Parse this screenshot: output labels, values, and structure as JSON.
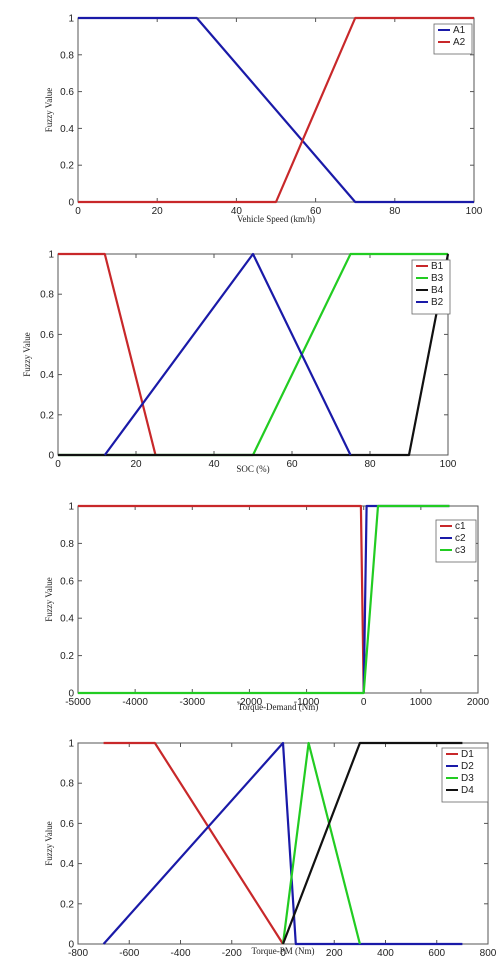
{
  "chart_data": [
    {
      "type": "line",
      "xlabel": "Vehicle Speed (km/h)",
      "ylabel": "Fuzzy Value",
      "xlim": [
        0,
        100
      ],
      "ylim": [
        0,
        1
      ],
      "xticks": [
        0,
        20,
        40,
        60,
        80,
        100
      ],
      "yticks": [
        0,
        0.2,
        0.4,
        0.6,
        0.8,
        1
      ],
      "legend": "top-right",
      "series": [
        {
          "name": "A1",
          "color": "#1a1aa8",
          "x": [
            0,
            30,
            70,
            100
          ],
          "y": [
            1,
            1,
            0,
            0
          ]
        },
        {
          "name": "A2",
          "color": "#c8282a",
          "x": [
            0,
            50,
            70,
            100
          ],
          "y": [
            0,
            0,
            1,
            1
          ]
        }
      ]
    },
    {
      "type": "line",
      "xlabel": "SOC (%)",
      "ylabel": "Fuzzy Value",
      "xlim": [
        0,
        100
      ],
      "ylim": [
        0,
        1
      ],
      "xticks": [
        0,
        20,
        40,
        60,
        80,
        100
      ],
      "yticks": [
        0,
        0.2,
        0.4,
        0.6,
        0.8,
        1
      ],
      "legend": "top-right",
      "series": [
        {
          "name": "B1",
          "color": "#c8282a",
          "x": [
            0,
            12,
            25
          ],
          "y": [
            1,
            1,
            0
          ]
        },
        {
          "name": "B3",
          "color": "#22cc22",
          "x": [
            0,
            50,
            75,
            100
          ],
          "y": [
            0,
            0,
            1,
            1
          ]
        },
        {
          "name": "B4",
          "color": "#111111",
          "x": [
            0,
            90,
            100
          ],
          "y": [
            0,
            0,
            1
          ]
        },
        {
          "name": "B2",
          "color": "#1a1aa8",
          "x": [
            12,
            50,
            75
          ],
          "y": [
            0,
            1,
            0
          ]
        }
      ]
    },
    {
      "type": "line",
      "xlabel": "Torque-Demand (Nm)",
      "ylabel": "Fuzzy Value",
      "xlim": [
        -5000,
        2000
      ],
      "ylim": [
        0,
        1
      ],
      "xticks": [
        -5000,
        -4000,
        -3000,
        -2000,
        -1000,
        0,
        1000,
        2000
      ],
      "yticks": [
        0,
        0.2,
        0.4,
        0.6,
        0.8,
        1
      ],
      "legend": "top-right",
      "series": [
        {
          "name": "c1",
          "color": "#c8282a",
          "x": [
            -5000,
            -50,
            0
          ],
          "y": [
            1,
            1,
            0
          ]
        },
        {
          "name": "c2",
          "color": "#1a1aa8",
          "x": [
            0,
            50,
            1500
          ],
          "y": [
            0,
            1,
            1
          ]
        },
        {
          "name": "c3",
          "color": "#22cc22",
          "x": [
            -5000,
            0,
            250,
            1500
          ],
          "y": [
            0,
            0,
            1,
            1
          ]
        }
      ]
    },
    {
      "type": "line",
      "xlabel": "Torque-PM (Nm)",
      "ylabel": "Fuzzy Value",
      "xlim": [
        -800,
        800
      ],
      "ylim": [
        0,
        1
      ],
      "xticks": [
        -800,
        -600,
        -400,
        -200,
        0,
        200,
        400,
        600,
        800
      ],
      "yticks": [
        0,
        0.2,
        0.4,
        0.6,
        0.8,
        1
      ],
      "legend": "top-right",
      "series": [
        {
          "name": "D1",
          "color": "#c8282a",
          "x": [
            -700,
            -500,
            0
          ],
          "y": [
            1,
            1,
            0
          ]
        },
        {
          "name": "D2",
          "color": "#1a1aa8",
          "x": [
            -700,
            0,
            50,
            700
          ],
          "y": [
            0,
            1,
            0,
            0
          ]
        },
        {
          "name": "D3",
          "color": "#22cc22",
          "x": [
            0,
            100,
            300
          ],
          "y": [
            0,
            1,
            0
          ]
        },
        {
          "name": "D4",
          "color": "#111111",
          "x": [
            0,
            300,
            700
          ],
          "y": [
            0,
            1,
            1
          ]
        }
      ]
    }
  ]
}
